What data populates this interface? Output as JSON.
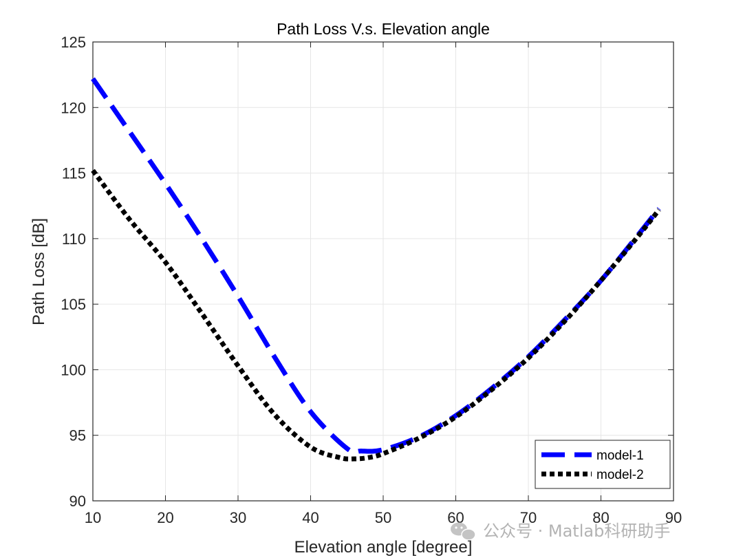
{
  "chart_data": {
    "type": "line",
    "title": "Path Loss V.s. Elevation angle",
    "xlabel": "Elevation angle [degree]",
    "ylabel": "Path Loss [dB]",
    "xlim": [
      10,
      90
    ],
    "ylim": [
      90,
      125
    ],
    "xticks": [
      10,
      20,
      30,
      40,
      50,
      60,
      70,
      80,
      90
    ],
    "yticks": [
      90,
      95,
      100,
      105,
      110,
      115,
      120,
      125
    ],
    "grid": true,
    "legend_position": "bottom-right",
    "series": [
      {
        "name": "model-1",
        "color": "#0000ff",
        "style": "dashed",
        "x": [
          10,
          15,
          20,
          25,
          30,
          35,
          40,
          45,
          47,
          50,
          55,
          60,
          65,
          70,
          75,
          80,
          85,
          88
        ],
        "y": [
          122.2,
          118.2,
          114.2,
          110.0,
          105.6,
          101.0,
          96.8,
          94.0,
          93.8,
          93.9,
          94.9,
          96.5,
          98.6,
          101.0,
          103.8,
          106.8,
          110.2,
          112.3
        ]
      },
      {
        "name": "model-2",
        "color": "#000000",
        "style": "dotted",
        "x": [
          10,
          15,
          20,
          25,
          30,
          35,
          40,
          44,
          46,
          48,
          50,
          55,
          60,
          65,
          70,
          75,
          80,
          85,
          88
        ],
        "y": [
          115.2,
          111.5,
          108.2,
          104.3,
          100.3,
          96.6,
          94.1,
          93.3,
          93.2,
          93.3,
          93.6,
          94.8,
          96.4,
          98.5,
          100.9,
          103.7,
          106.8,
          110.1,
          112.2
        ]
      }
    ]
  },
  "watermark": {
    "icon": "wechat-icon",
    "text": "公众号 · Matlab科研助手"
  }
}
